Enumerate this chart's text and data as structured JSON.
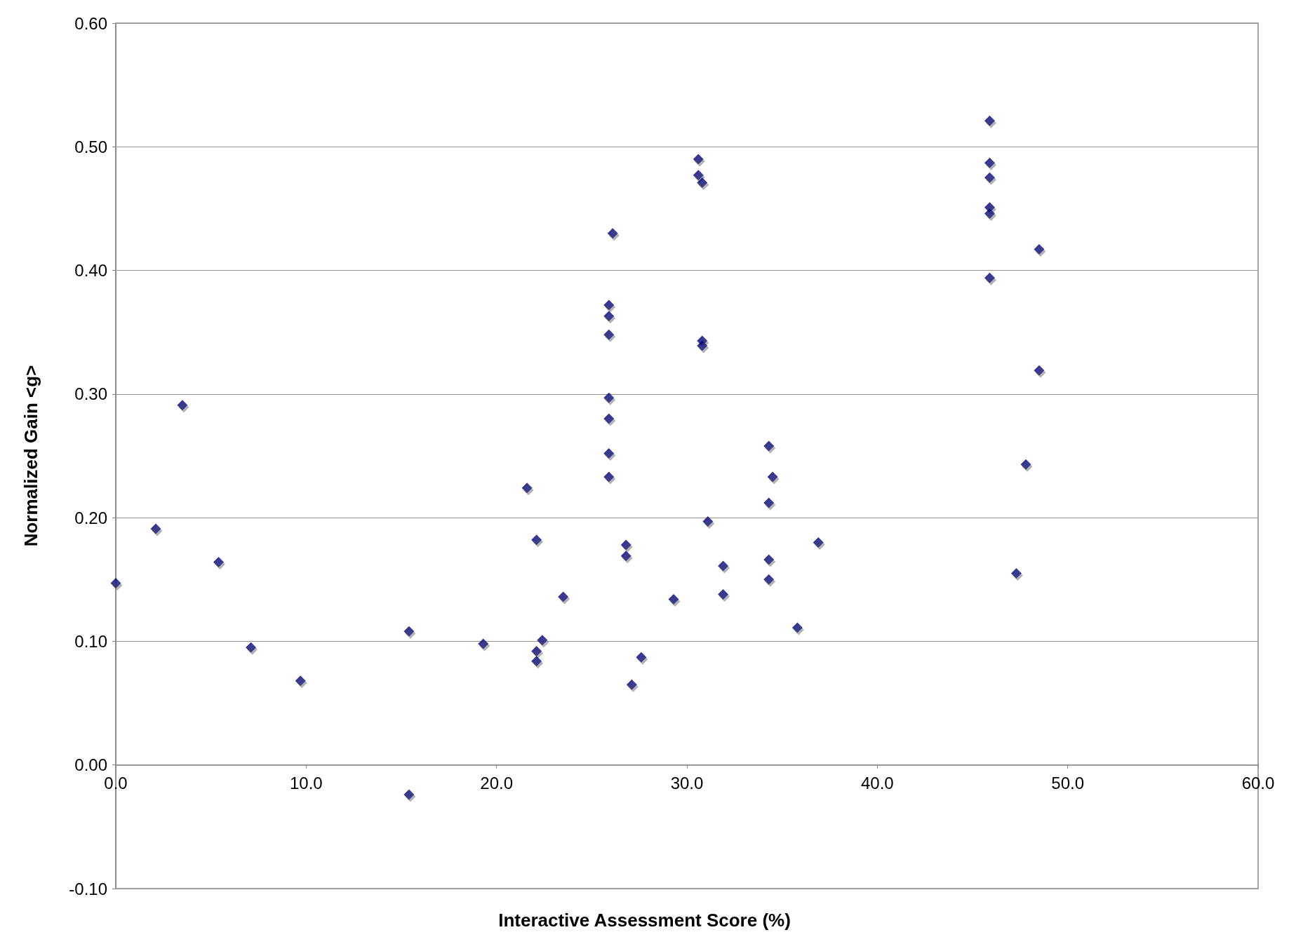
{
  "chart_data": {
    "type": "scatter",
    "xlabel": "Interactive Assessment Score (%)",
    "ylabel": "Normalized Gain <g>",
    "x": [
      0,
      2.1,
      3.5,
      5.4,
      7.1,
      9.7,
      15.4,
      15.4,
      19.3,
      21.6,
      22.1,
      22.1,
      22.1,
      22.4,
      23.5,
      25.9,
      25.9,
      25.9,
      25.9,
      25.9,
      25.9,
      25.9,
      26.1,
      26.8,
      26.8,
      27.1,
      27.6,
      29.3,
      30.6,
      30.6,
      30.8,
      30.8,
      30.8,
      31.1,
      31.9,
      31.9,
      34.3,
      34.3,
      34.3,
      34.3,
      34.5,
      35.8,
      36.9,
      45.9,
      45.9,
      45.9,
      45.9,
      45.9,
      45.9,
      47.3,
      47.8,
      48.5,
      48.5
    ],
    "values": [
      0.147,
      0.191,
      0.291,
      0.164,
      0.095,
      0.068,
      0.108,
      -0.024,
      0.098,
      0.224,
      0.182,
      0.092,
      0.084,
      0.101,
      0.136,
      0.372,
      0.363,
      0.348,
      0.297,
      0.28,
      0.252,
      0.233,
      0.43,
      0.178,
      0.169,
      0.065,
      0.087,
      0.134,
      0.49,
      0.477,
      0.471,
      0.343,
      0.339,
      0.197,
      0.161,
      0.138,
      0.258,
      0.212,
      0.166,
      0.15,
      0.233,
      0.111,
      0.18,
      0.521,
      0.487,
      0.475,
      0.451,
      0.446,
      0.394,
      0.155,
      0.243,
      0.417,
      0.319
    ],
    "color": "#00007f",
    "marker": "diamond",
    "grid": "y",
    "xlim": [
      0,
      60
    ],
    "xticks": [
      {
        "value": 0,
        "label": "0.0"
      },
      {
        "value": 10,
        "label": "10.0"
      },
      {
        "value": 20,
        "label": "20.0"
      },
      {
        "value": 30,
        "label": "30.0"
      },
      {
        "value": 40,
        "label": "40.0"
      },
      {
        "value": 50,
        "label": "50.0"
      },
      {
        "value": 60,
        "label": "60.0"
      }
    ],
    "ylim": [
      -0.1,
      0.6
    ],
    "yticks": [
      {
        "value": -0.1,
        "label": "-0.10"
      },
      {
        "value": 0,
        "label": "0.00"
      },
      {
        "value": 0.1,
        "label": "0.10"
      },
      {
        "value": 0.2,
        "label": "0.20"
      },
      {
        "value": 0.3,
        "label": "0.30"
      },
      {
        "value": 0.4,
        "label": "0.40"
      },
      {
        "value": 0.5,
        "label": "0.50"
      },
      {
        "value": 0.6,
        "label": "0.60"
      }
    ]
  }
}
